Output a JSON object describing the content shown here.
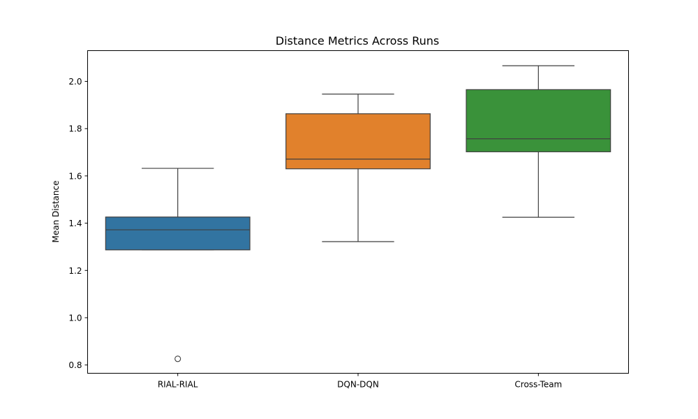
{
  "chart_data": {
    "type": "box",
    "title": "Distance Metrics Across Runs",
    "xlabel": "",
    "ylabel": "Mean Distance",
    "categories": [
      "RIAL-RIAL",
      "DQN-DQN",
      "Cross-Team"
    ],
    "ylim": [
      0.765,
      2.13
    ],
    "yticks": [
      0.8,
      1.0,
      1.2,
      1.4,
      1.6,
      1.8,
      2.0
    ],
    "ytick_labels": [
      "0.8",
      "1.0",
      "1.2",
      "1.4",
      "1.6",
      "1.8",
      "2.0"
    ],
    "grid": false,
    "boxes": [
      {
        "category": "RIAL-RIAL",
        "whisker_low": 1.287,
        "q1": 1.287,
        "median": 1.372,
        "q3": 1.426,
        "whisker_high": 1.632,
        "outliers": [
          0.826
        ],
        "color": "#3274a1"
      },
      {
        "category": "DQN-DQN",
        "whisker_low": 1.322,
        "q1": 1.63,
        "median": 1.671,
        "q3": 1.863,
        "whisker_high": 1.946,
        "outliers": [],
        "color": "#e1812c"
      },
      {
        "category": "Cross-Team",
        "whisker_low": 1.425,
        "q1": 1.702,
        "median": 1.757,
        "q3": 1.965,
        "whisker_high": 2.066,
        "outliers": [],
        "color": "#3a923a"
      }
    ]
  }
}
